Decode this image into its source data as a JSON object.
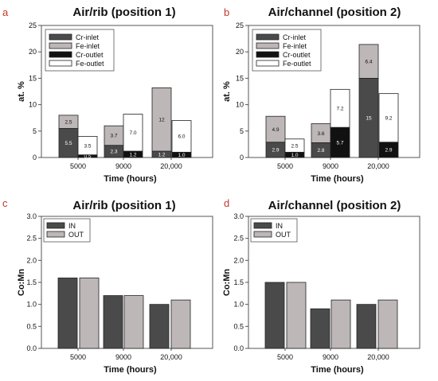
{
  "colors": {
    "cr_inlet": "#4a4a4a",
    "fe_inlet": "#bdb7b7",
    "cr_outlet": "#111111",
    "fe_outlet": "#ffffff",
    "in": "#4a4a4a",
    "out": "#bdb7b7"
  },
  "chart_data": [
    {
      "panel_label": "a",
      "type": "bar",
      "stacked": true,
      "title": "Air/rib (position 1)",
      "xlabel": "Time (hours)",
      "ylabel": "at. %",
      "ylim": [
        0,
        25
      ],
      "yticks": [
        0,
        5,
        10,
        15,
        20,
        25
      ],
      "categories": [
        "5000",
        "9000",
        "20,000"
      ],
      "legend_position": "top-left",
      "legend": [
        "Cr-inlet",
        "Fe-inlet",
        "Cr-outlet",
        "Fe-outlet"
      ],
      "groups": [
        {
          "name": "inlet",
          "stack": [
            {
              "series": "Cr-inlet",
              "values": [
                5.5,
                2.3,
                1.2
              ],
              "labels": [
                "5.5",
                "2.3",
                "1.2"
              ]
            },
            {
              "series": "Fe-inlet",
              "values": [
                2.5,
                3.7,
                12
              ],
              "labels": [
                "2.5",
                "3.7",
                "12"
              ]
            }
          ]
        },
        {
          "name": "outlet",
          "stack": [
            {
              "series": "Cr-outlet",
              "values": [
                0.5,
                1.2,
                1.0
              ],
              "labels": [
                "0.5",
                "1.2",
                "1.0"
              ]
            },
            {
              "series": "Fe-outlet",
              "values": [
                3.5,
                7.0,
                6.0
              ],
              "labels": [
                "3.5",
                "7.0",
                "6.0"
              ]
            }
          ]
        }
      ]
    },
    {
      "panel_label": "b",
      "type": "bar",
      "stacked": true,
      "title": "Air/channel (position 2)",
      "xlabel": "Time (hours)",
      "ylabel": "at. %",
      "ylim": [
        0,
        25
      ],
      "yticks": [
        0,
        5,
        10,
        15,
        20,
        25
      ],
      "categories": [
        "5000",
        "9000",
        "20,000"
      ],
      "legend_position": "top-left",
      "legend": [
        "Cr-inlet",
        "Fe-inlet",
        "Cr-outlet",
        "Fe-outlet"
      ],
      "groups": [
        {
          "name": "inlet",
          "stack": [
            {
              "series": "Cr-inlet",
              "values": [
                2.9,
                2.8,
                15
              ],
              "labels": [
                "2.9",
                "2.8",
                "15"
              ]
            },
            {
              "series": "Fe-inlet",
              "values": [
                4.9,
                3.6,
                6.4
              ],
              "labels": [
                "4.9",
                "3.6",
                "6.4"
              ]
            }
          ]
        },
        {
          "name": "outlet",
          "stack": [
            {
              "series": "Cr-outlet",
              "values": [
                1.0,
                5.7,
                2.9
              ],
              "labels": [
                "1.0",
                "5.7",
                "2.9"
              ]
            },
            {
              "series": "Fe-outlet",
              "values": [
                2.5,
                7.2,
                9.2
              ],
              "labels": [
                "2.5",
                "7.2",
                "9.2"
              ]
            }
          ]
        }
      ]
    },
    {
      "panel_label": "c",
      "type": "bar",
      "stacked": false,
      "title": "Air/rib (position 1)",
      "xlabel": "Time (hours)",
      "ylabel": "Co:Mn",
      "ylim": [
        0,
        3.0
      ],
      "yticks": [
        "0.0",
        "0.5",
        "1.0",
        "1.5",
        "2.0",
        "2.5",
        "3.0"
      ],
      "categories": [
        "5000",
        "9000",
        "20,000"
      ],
      "legend_position": "top-left",
      "legend": [
        "IN",
        "OUT"
      ],
      "series": [
        {
          "name": "IN",
          "values": [
            1.6,
            1.2,
            1.0
          ]
        },
        {
          "name": "OUT",
          "values": [
            1.6,
            1.2,
            1.1
          ]
        }
      ]
    },
    {
      "panel_label": "d",
      "type": "bar",
      "stacked": false,
      "title": "Air/channel (position 2)",
      "xlabel": "Time (hours)",
      "ylabel": "Co:Mn",
      "ylim": [
        0,
        3.0
      ],
      "yticks": [
        "0.0",
        "0.5",
        "1.0",
        "1.5",
        "2.0",
        "2.5",
        "3.0"
      ],
      "categories": [
        "5000",
        "9000",
        "20,000"
      ],
      "legend_position": "top-left",
      "legend": [
        "IN",
        "OUT"
      ],
      "series": [
        {
          "name": "IN",
          "values": [
            1.5,
            0.9,
            1.0
          ]
        },
        {
          "name": "OUT",
          "values": [
            1.5,
            1.1,
            1.1
          ]
        }
      ]
    }
  ]
}
